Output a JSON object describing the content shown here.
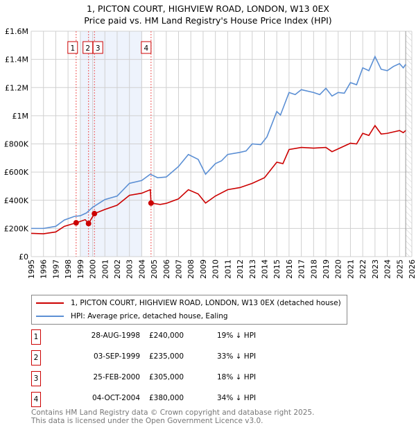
{
  "title_line1": "1, PICTON COURT, HIGHVIEW ROAD, LONDON, W13 0EX",
  "title_line2": "Price paid vs. HM Land Registry's House Price Index (HPI)",
  "chart_data": {
    "type": "line",
    "xlim": [
      1995,
      2026
    ],
    "ylim": [
      0,
      1600000
    ],
    "x_ticks": [
      "1995",
      "1996",
      "1997",
      "1998",
      "1999",
      "2000",
      "2001",
      "2002",
      "2003",
      "2004",
      "2005",
      "2006",
      "2007",
      "2008",
      "2009",
      "2010",
      "2011",
      "2012",
      "2013",
      "2014",
      "2015",
      "2016",
      "2017",
      "2018",
      "2019",
      "2020",
      "2021",
      "2022",
      "2023",
      "2024",
      "2025",
      "2026"
    ],
    "y_ticks": [
      {
        "v": 0,
        "label": "£0"
      },
      {
        "v": 200000,
        "label": "£200K"
      },
      {
        "v": 400000,
        "label": "£400K"
      },
      {
        "v": 600000,
        "label": "£600K"
      },
      {
        "v": 800000,
        "label": "£800K"
      },
      {
        "v": 1000000,
        "label": "£1M"
      },
      {
        "v": 1200000,
        "label": "£1.2M"
      },
      {
        "v": 1400000,
        "label": "£1.4M"
      },
      {
        "v": 1600000,
        "label": "£1.6M"
      }
    ],
    "grid": true,
    "shaded_range": [
      1999.0,
      2004.0
    ],
    "forecast_hatch_from": 2025.5,
    "colors": {
      "property": "#cc0000",
      "hpi": "#5b8fd4",
      "shade": "#eef3fc"
    },
    "series": [
      {
        "name": "1, PICTON COURT, HIGHVIEW ROAD, LONDON, W13 0EX (detached house)",
        "key": "property",
        "points": [
          [
            1995,
            165
          ],
          [
            1996,
            162
          ],
          [
            1997,
            175
          ],
          [
            1997.7,
            215
          ],
          [
            1998.66,
            240
          ],
          [
            1999.4,
            262
          ],
          [
            1999.67,
            235
          ],
          [
            2000.15,
            305
          ],
          [
            2001,
            335
          ],
          [
            2002,
            365
          ],
          [
            2003,
            435
          ],
          [
            2004,
            450
          ],
          [
            2004.7,
            475
          ],
          [
            2004.76,
            380
          ],
          [
            2005.5,
            370
          ],
          [
            2006,
            378
          ],
          [
            2007,
            410
          ],
          [
            2007.8,
            475
          ],
          [
            2008.6,
            445
          ],
          [
            2009.2,
            380
          ],
          [
            2010,
            430
          ],
          [
            2011,
            475
          ],
          [
            2012,
            490
          ],
          [
            2013,
            520
          ],
          [
            2014,
            560
          ],
          [
            2015,
            670
          ],
          [
            2015.5,
            660
          ],
          [
            2016,
            760
          ],
          [
            2017,
            775
          ],
          [
            2018,
            770
          ],
          [
            2019,
            775
          ],
          [
            2019.5,
            745
          ],
          [
            2020,
            765
          ],
          [
            2021,
            805
          ],
          [
            2021.5,
            800
          ],
          [
            2022,
            875
          ],
          [
            2022.5,
            860
          ],
          [
            2023,
            930
          ],
          [
            2023.5,
            870
          ],
          [
            2024,
            875
          ],
          [
            2025,
            895
          ],
          [
            2025.3,
            880
          ],
          [
            2025.5,
            895
          ]
        ]
      },
      {
        "name": "HPI: Average price, detached house, Ealing",
        "key": "hpi",
        "points": [
          [
            1995,
            200
          ],
          [
            1996,
            200
          ],
          [
            1997,
            215
          ],
          [
            1997.7,
            260
          ],
          [
            1998.5,
            285
          ],
          [
            1999,
            290
          ],
          [
            1999.5,
            310
          ],
          [
            2000,
            350
          ],
          [
            2001,
            405
          ],
          [
            2002,
            430
          ],
          [
            2003,
            520
          ],
          [
            2004,
            540
          ],
          [
            2004.7,
            585
          ],
          [
            2005.3,
            560
          ],
          [
            2006,
            565
          ],
          [
            2007,
            640
          ],
          [
            2007.8,
            725
          ],
          [
            2008.6,
            690
          ],
          [
            2009.2,
            585
          ],
          [
            2010,
            660
          ],
          [
            2010.5,
            680
          ],
          [
            2011,
            725
          ],
          [
            2012,
            740
          ],
          [
            2012.5,
            750
          ],
          [
            2013,
            800
          ],
          [
            2013.7,
            795
          ],
          [
            2014.2,
            850
          ],
          [
            2015,
            1030
          ],
          [
            2015.3,
            1005
          ],
          [
            2016,
            1165
          ],
          [
            2016.5,
            1150
          ],
          [
            2017,
            1185
          ],
          [
            2018,
            1165
          ],
          [
            2018.5,
            1150
          ],
          [
            2019,
            1195
          ],
          [
            2019.5,
            1140
          ],
          [
            2020,
            1165
          ],
          [
            2020.5,
            1160
          ],
          [
            2021,
            1235
          ],
          [
            2021.5,
            1220
          ],
          [
            2022,
            1340
          ],
          [
            2022.5,
            1320
          ],
          [
            2023,
            1420
          ],
          [
            2023.5,
            1330
          ],
          [
            2024,
            1320
          ],
          [
            2024.5,
            1350
          ],
          [
            2025,
            1370
          ],
          [
            2025.3,
            1340
          ],
          [
            2025.5,
            1365
          ]
        ]
      }
    ],
    "sales": [
      {
        "n": "1",
        "year": 1998.66,
        "value": 240
      },
      {
        "n": "2",
        "year": 1999.67,
        "value": 235
      },
      {
        "n": "3",
        "year": 2000.15,
        "value": 305
      },
      {
        "n": "4",
        "year": 2004.76,
        "value": 380
      }
    ]
  },
  "legend": {
    "property": "1, PICTON COURT, HIGHVIEW ROAD, LONDON, W13 0EX (detached house)",
    "hpi": "HPI: Average price, detached house, Ealing"
  },
  "transactions": [
    {
      "n": "1",
      "date": "28-AUG-1998",
      "price": "£240,000",
      "hpi": "19% ↓ HPI"
    },
    {
      "n": "2",
      "date": "03-SEP-1999",
      "price": "£235,000",
      "hpi": "33% ↓ HPI"
    },
    {
      "n": "3",
      "date": "25-FEB-2000",
      "price": "£305,000",
      "hpi": "18% ↓ HPI"
    },
    {
      "n": "4",
      "date": "04-OCT-2004",
      "price": "£380,000",
      "hpi": "34% ↓ HPI"
    }
  ],
  "footer_line1": "Contains HM Land Registry data © Crown copyright and database right 2025.",
  "footer_line2": "This data is licensed under the Open Government Licence v3.0."
}
